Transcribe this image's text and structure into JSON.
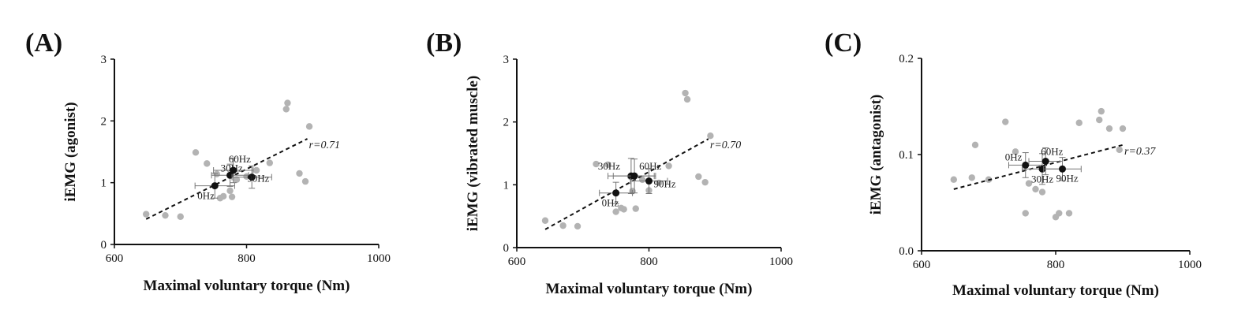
{
  "chart_data": [
    {
      "type": "scatter",
      "panel_label": "(A)",
      "title": "",
      "xlabel": "Maximal voluntary torque (Nm)",
      "ylabel": "iEMG (agonist)",
      "xlim": [
        600,
        1000
      ],
      "ylim": [
        0,
        3
      ],
      "xticks": [
        "600",
        "800",
        "1000"
      ],
      "yticks": [
        "0",
        "1",
        "2",
        "3"
      ],
      "grid": false,
      "gray_points": [
        [
          648,
          0.49
        ],
        [
          677,
          0.47
        ],
        [
          700,
          0.45
        ],
        [
          723,
          1.49
        ],
        [
          740,
          1.31
        ],
        [
          755,
          1.14
        ],
        [
          760,
          0.75
        ],
        [
          765,
          0.78
        ],
        [
          775,
          0.87
        ],
        [
          778,
          0.77
        ],
        [
          785,
          1.05
        ],
        [
          800,
          1.1
        ],
        [
          815,
          1.2
        ],
        [
          835,
          1.32
        ],
        [
          860,
          2.19
        ],
        [
          862,
          2.29
        ],
        [
          880,
          1.15
        ],
        [
          889,
          1.02
        ],
        [
          895,
          1.91
        ]
      ],
      "mean_points": [
        {
          "label": "0Hz",
          "x": 752,
          "y": 0.95,
          "xerr": 30,
          "yerr": 0.2
        },
        {
          "label": "30Hz",
          "x": 775,
          "y": 1.12,
          "xerr": 28,
          "yerr": 0.18
        },
        {
          "label": "60Hz",
          "x": 780,
          "y": 1.2,
          "xerr": 30,
          "yerr": 0.2
        },
        {
          "label": "90Hz",
          "x": 808,
          "y": 1.09,
          "xerr": 30,
          "yerr": 0.18
        }
      ],
      "trendline": {
        "x": [
          648,
          892
        ],
        "y": [
          0.41,
          1.71
        ]
      },
      "r_label": "r=0.71"
    },
    {
      "type": "scatter",
      "panel_label": "(B)",
      "title": "",
      "xlabel": "Maximal voluntary torque (Nm)",
      "ylabel": "iEMG (vibrated muscle)",
      "xlim": [
        600,
        1000
      ],
      "ylim": [
        0,
        3
      ],
      "xticks": [
        "600",
        "800",
        "1000"
      ],
      "yticks": [
        "0",
        "1",
        "2",
        "3"
      ],
      "grid": false,
      "gray_points": [
        [
          643,
          0.43
        ],
        [
          670,
          0.35
        ],
        [
          692,
          0.34
        ],
        [
          720,
          1.33
        ],
        [
          738,
          1.32
        ],
        [
          750,
          0.57
        ],
        [
          758,
          0.63
        ],
        [
          762,
          0.61
        ],
        [
          772,
          1.13
        ],
        [
          775,
          0.9
        ],
        [
          780,
          0.62
        ],
        [
          790,
          1.08
        ],
        [
          800,
          0.91
        ],
        [
          815,
          1.03
        ],
        [
          830,
          1.3
        ],
        [
          855,
          2.46
        ],
        [
          858,
          2.36
        ],
        [
          875,
          1.13
        ],
        [
          885,
          1.04
        ],
        [
          893,
          1.78
        ]
      ],
      "mean_points": [
        {
          "label": "0Hz",
          "x": 750,
          "y": 0.87,
          "xerr": 25,
          "yerr": 0.17
        },
        {
          "label": "30Hz",
          "x": 773,
          "y": 1.14,
          "xerr": 35,
          "yerr": 0.28
        },
        {
          "label": "60Hz",
          "x": 778,
          "y": 1.14,
          "xerr": 32,
          "yerr": 0.27
        },
        {
          "label": "90Hz",
          "x": 800,
          "y": 1.06,
          "xerr": 28,
          "yerr": 0.2
        }
      ],
      "trendline": {
        "x": [
          643,
          890
        ],
        "y": [
          0.29,
          1.73
        ]
      },
      "r_label": "r=0.70"
    },
    {
      "type": "scatter",
      "panel_label": "(C)",
      "title": "",
      "xlabel": "Maximal voluntary torque (Nm)",
      "ylabel": "iEMG (antagonist)",
      "xlim": [
        600,
        1000
      ],
      "ylim": [
        0.0,
        0.2
      ],
      "xticks": [
        "600",
        "800",
        "1000"
      ],
      "yticks": [
        "0.0",
        "0.1",
        "0.2"
      ],
      "grid": false,
      "gray_points": [
        [
          648,
          0.074
        ],
        [
          675,
          0.076
        ],
        [
          680,
          0.11
        ],
        [
          700,
          0.074
        ],
        [
          725,
          0.134
        ],
        [
          740,
          0.103
        ],
        [
          755,
          0.039
        ],
        [
          760,
          0.07
        ],
        [
          770,
          0.064
        ],
        [
          780,
          0.061
        ],
        [
          800,
          0.035
        ],
        [
          805,
          0.039
        ],
        [
          820,
          0.039
        ],
        [
          835,
          0.133
        ],
        [
          865,
          0.136
        ],
        [
          868,
          0.145
        ],
        [
          880,
          0.127
        ],
        [
          895,
          0.105
        ],
        [
          900,
          0.127
        ]
      ],
      "mean_points": [
        {
          "label": "0Hz",
          "x": 755,
          "y": 0.089,
          "xerr": 25,
          "yerr": 0.013
        },
        {
          "label": "30Hz",
          "x": 780,
          "y": 0.085,
          "xerr": 30,
          "yerr": 0.016
        },
        {
          "label": "60Hz",
          "x": 785,
          "y": 0.093,
          "xerr": 25,
          "yerr": 0.014
        },
        {
          "label": "90Hz",
          "x": 810,
          "y": 0.085,
          "xerr": 28,
          "yerr": 0.012
        }
      ],
      "trendline": {
        "x": [
          648,
          900
        ],
        "y": [
          0.064,
          0.11
        ]
      },
      "r_label": "r=0.37"
    }
  ],
  "colors": {
    "gray_point": "#b3b3b3",
    "mean_point": "#111111",
    "axis": "#111111",
    "trend": "#111111"
  }
}
